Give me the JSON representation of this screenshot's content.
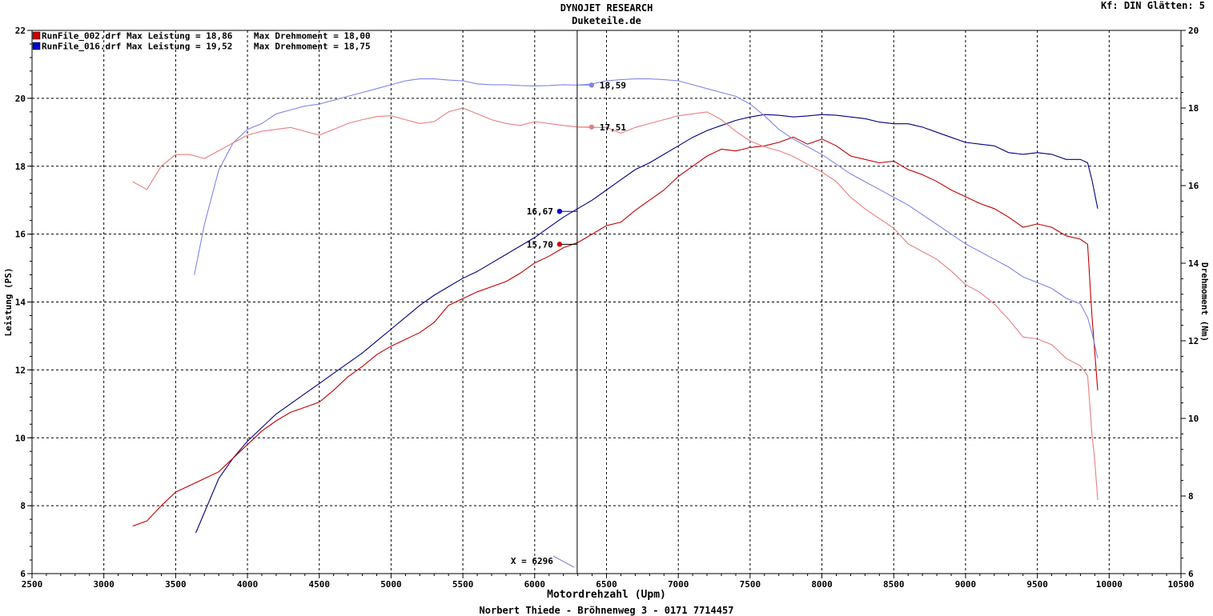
{
  "header": {
    "title_line1": "DYNOJET RESEARCH",
    "title_line2": "Duketeile.de",
    "corner_text": "Kf: DIN  Glätten: 5"
  },
  "footer": "Norbert Thiede - Bröhnenweg 3 - 0171 7714457",
  "chart_data": {
    "type": "line",
    "xlabel": "Motordrehzahl (Upm)",
    "ylabel_left": "Leistung (PS)",
    "ylabel_right": "Drehmoment (Nm)",
    "xlim": [
      2500,
      10500
    ],
    "ylim_left": [
      6,
      22
    ],
    "ylim_right": [
      6,
      20
    ],
    "x_ticks": [
      2500,
      3000,
      3500,
      4000,
      4500,
      5000,
      5500,
      6000,
      6500,
      7000,
      7500,
      8000,
      8500,
      9000,
      9500,
      10000,
      10500
    ],
    "y_left_ticks": [
      6,
      8,
      10,
      12,
      14,
      16,
      18,
      20,
      22
    ],
    "y_right_ticks": [
      6,
      8,
      10,
      12,
      14,
      16,
      18,
      20
    ],
    "grid": true,
    "legend": [
      {
        "text": "RunFile_002.drf Max Leistung = 18,86    Max Drehmoment = 18,00",
        "color": "#cc0000"
      },
      {
        "text": "RunFile_016.drf Max Leistung = 19,52    Max Drehmoment = 18,75",
        "color": "#0000cc"
      }
    ],
    "legend_placement": "top-left",
    "cursor": {
      "x": 6296,
      "label": "X = 6296"
    },
    "markers": [
      {
        "label": "16,67",
        "value": 16.67,
        "axis": "left",
        "color": "#0000cc"
      },
      {
        "label": "15,70",
        "value": 15.7,
        "axis": "left",
        "color": "#cc0000"
      },
      {
        "label": "18,59",
        "value": 18.59,
        "axis": "right",
        "color": "#7f86e6"
      },
      {
        "label": "17,51",
        "value": 17.51,
        "axis": "right",
        "color": "#e77f7f"
      }
    ],
    "series": [
      {
        "name": "RunFile_016.drf Leistung",
        "axis": "left",
        "color": "#00007f",
        "points": [
          [
            3640,
            7.2
          ],
          [
            3700,
            7.8
          ],
          [
            3800,
            8.8
          ],
          [
            3900,
            9.4
          ],
          [
            4000,
            9.9
          ],
          [
            4100,
            10.3
          ],
          [
            4200,
            10.7
          ],
          [
            4300,
            11.0
          ],
          [
            4400,
            11.3
          ],
          [
            4500,
            11.6
          ],
          [
            4600,
            11.9
          ],
          [
            4700,
            12.2
          ],
          [
            4800,
            12.5
          ],
          [
            4900,
            12.85
          ],
          [
            5000,
            13.2
          ],
          [
            5100,
            13.55
          ],
          [
            5200,
            13.9
          ],
          [
            5300,
            14.2
          ],
          [
            5400,
            14.45
          ],
          [
            5500,
            14.7
          ],
          [
            5600,
            14.9
          ],
          [
            5700,
            15.15
          ],
          [
            5800,
            15.4
          ],
          [
            5900,
            15.65
          ],
          [
            6000,
            15.9
          ],
          [
            6100,
            16.2
          ],
          [
            6200,
            16.5
          ],
          [
            6300,
            16.75
          ],
          [
            6400,
            17.0
          ],
          [
            6500,
            17.3
          ],
          [
            6600,
            17.6
          ],
          [
            6700,
            17.9
          ],
          [
            6800,
            18.1
          ],
          [
            6900,
            18.35
          ],
          [
            7000,
            18.6
          ],
          [
            7100,
            18.85
          ],
          [
            7200,
            19.05
          ],
          [
            7300,
            19.2
          ],
          [
            7400,
            19.35
          ],
          [
            7500,
            19.45
          ],
          [
            7600,
            19.52
          ],
          [
            7700,
            19.5
          ],
          [
            7800,
            19.45
          ],
          [
            7900,
            19.48
          ],
          [
            8000,
            19.52
          ],
          [
            8100,
            19.5
          ],
          [
            8200,
            19.45
          ],
          [
            8300,
            19.4
          ],
          [
            8400,
            19.3
          ],
          [
            8500,
            19.25
          ],
          [
            8600,
            19.25
          ],
          [
            8700,
            19.15
          ],
          [
            8800,
            19.0
          ],
          [
            8900,
            18.85
          ],
          [
            9000,
            18.7
          ],
          [
            9100,
            18.65
          ],
          [
            9200,
            18.6
          ],
          [
            9300,
            18.4
          ],
          [
            9400,
            18.35
          ],
          [
            9500,
            18.4
          ],
          [
            9600,
            18.35
          ],
          [
            9700,
            18.2
          ],
          [
            9800,
            18.2
          ],
          [
            9850,
            18.1
          ],
          [
            9880,
            17.6
          ],
          [
            9920,
            16.75
          ]
        ]
      },
      {
        "name": "RunFile_002.drf Leistung",
        "axis": "left",
        "color": "#c00000",
        "points": [
          [
            3200,
            7.4
          ],
          [
            3300,
            7.55
          ],
          [
            3400,
            8.0
          ],
          [
            3500,
            8.4
          ],
          [
            3600,
            8.6
          ],
          [
            3700,
            8.8
          ],
          [
            3800,
            9.0
          ],
          [
            3900,
            9.4
          ],
          [
            4000,
            9.8
          ],
          [
            4100,
            10.2
          ],
          [
            4200,
            10.5
          ],
          [
            4300,
            10.75
          ],
          [
            4400,
            10.9
          ],
          [
            4500,
            11.05
          ],
          [
            4600,
            11.4
          ],
          [
            4700,
            11.8
          ],
          [
            4800,
            12.1
          ],
          [
            4900,
            12.45
          ],
          [
            5000,
            12.7
          ],
          [
            5100,
            12.9
          ],
          [
            5200,
            13.1
          ],
          [
            5300,
            13.4
          ],
          [
            5400,
            13.9
          ],
          [
            5500,
            14.1
          ],
          [
            5600,
            14.3
          ],
          [
            5700,
            14.45
          ],
          [
            5800,
            14.6
          ],
          [
            5900,
            14.85
          ],
          [
            6000,
            15.15
          ],
          [
            6100,
            15.35
          ],
          [
            6200,
            15.6
          ],
          [
            6300,
            15.75
          ],
          [
            6400,
            16.0
          ],
          [
            6500,
            16.25
          ],
          [
            6600,
            16.35
          ],
          [
            6700,
            16.7
          ],
          [
            6800,
            17.0
          ],
          [
            6900,
            17.3
          ],
          [
            7000,
            17.7
          ],
          [
            7100,
            18.0
          ],
          [
            7200,
            18.3
          ],
          [
            7300,
            18.5
          ],
          [
            7400,
            18.45
          ],
          [
            7500,
            18.55
          ],
          [
            7600,
            18.6
          ],
          [
            7700,
            18.7
          ],
          [
            7800,
            18.86
          ],
          [
            7900,
            18.65
          ],
          [
            8000,
            18.8
          ],
          [
            8100,
            18.6
          ],
          [
            8200,
            18.3
          ],
          [
            8300,
            18.2
          ],
          [
            8400,
            18.1
          ],
          [
            8500,
            18.15
          ],
          [
            8600,
            17.9
          ],
          [
            8700,
            17.75
          ],
          [
            8800,
            17.55
          ],
          [
            8900,
            17.3
          ],
          [
            9000,
            17.1
          ],
          [
            9100,
            16.9
          ],
          [
            9200,
            16.75
          ],
          [
            9300,
            16.5
          ],
          [
            9400,
            16.2
          ],
          [
            9500,
            16.3
          ],
          [
            9600,
            16.2
          ],
          [
            9700,
            15.95
          ],
          [
            9800,
            15.85
          ],
          [
            9850,
            15.7
          ],
          [
            9880,
            13.6
          ],
          [
            9920,
            11.4
          ]
        ]
      },
      {
        "name": "RunFile_016.drf Drehmoment",
        "axis": "right",
        "color": "#7f86e6",
        "points": [
          [
            3630,
            13.7
          ],
          [
            3700,
            15.0
          ],
          [
            3800,
            16.4
          ],
          [
            3900,
            17.1
          ],
          [
            4000,
            17.45
          ],
          [
            4100,
            17.6
          ],
          [
            4200,
            17.85
          ],
          [
            4300,
            17.95
          ],
          [
            4400,
            18.05
          ],
          [
            4500,
            18.1
          ],
          [
            4600,
            18.2
          ],
          [
            4700,
            18.3
          ],
          [
            4800,
            18.4
          ],
          [
            4900,
            18.5
          ],
          [
            5000,
            18.6
          ],
          [
            5100,
            18.7
          ],
          [
            5200,
            18.75
          ],
          [
            5300,
            18.75
          ],
          [
            5400,
            18.72
          ],
          [
            5500,
            18.7
          ],
          [
            5600,
            18.62
          ],
          [
            5700,
            18.6
          ],
          [
            5800,
            18.6
          ],
          [
            5900,
            18.58
          ],
          [
            6000,
            18.57
          ],
          [
            6100,
            18.58
          ],
          [
            6200,
            18.6
          ],
          [
            6300,
            18.59
          ],
          [
            6400,
            18.62
          ],
          [
            6500,
            18.7
          ],
          [
            6600,
            18.73
          ],
          [
            6700,
            18.75
          ],
          [
            6800,
            18.75
          ],
          [
            6900,
            18.73
          ],
          [
            7000,
            18.7
          ],
          [
            7100,
            18.6
          ],
          [
            7200,
            18.5
          ],
          [
            7300,
            18.4
          ],
          [
            7400,
            18.3
          ],
          [
            7500,
            18.1
          ],
          [
            7600,
            17.8
          ],
          [
            7700,
            17.45
          ],
          [
            7800,
            17.2
          ],
          [
            7900,
            17.0
          ],
          [
            8000,
            16.8
          ],
          [
            8100,
            16.55
          ],
          [
            8200,
            16.3
          ],
          [
            8300,
            16.1
          ],
          [
            8400,
            15.9
          ],
          [
            8500,
            15.7
          ],
          [
            8600,
            15.5
          ],
          [
            8700,
            15.25
          ],
          [
            8800,
            15.0
          ],
          [
            8900,
            14.75
          ],
          [
            9000,
            14.5
          ],
          [
            9100,
            14.3
          ],
          [
            9200,
            14.1
          ],
          [
            9300,
            13.9
          ],
          [
            9400,
            13.65
          ],
          [
            9500,
            13.5
          ],
          [
            9600,
            13.35
          ],
          [
            9700,
            13.1
          ],
          [
            9800,
            12.95
          ],
          [
            9850,
            12.6
          ],
          [
            9880,
            12.2
          ],
          [
            9920,
            11.55
          ]
        ]
      },
      {
        "name": "RunFile_002.drf Drehmoment",
        "axis": "right",
        "color": "#e77f7f",
        "points": [
          [
            3200,
            16.1
          ],
          [
            3300,
            15.9
          ],
          [
            3400,
            16.5
          ],
          [
            3500,
            16.8
          ],
          [
            3600,
            16.8
          ],
          [
            3700,
            16.7
          ],
          [
            3800,
            16.9
          ],
          [
            3900,
            17.1
          ],
          [
            4000,
            17.3
          ],
          [
            4100,
            17.4
          ],
          [
            4200,
            17.45
          ],
          [
            4300,
            17.5
          ],
          [
            4400,
            17.4
          ],
          [
            4500,
            17.3
          ],
          [
            4600,
            17.45
          ],
          [
            4700,
            17.6
          ],
          [
            4800,
            17.7
          ],
          [
            4900,
            17.78
          ],
          [
            5000,
            17.8
          ],
          [
            5100,
            17.7
          ],
          [
            5200,
            17.6
          ],
          [
            5300,
            17.65
          ],
          [
            5400,
            17.9
          ],
          [
            5500,
            18.0
          ],
          [
            5600,
            17.85
          ],
          [
            5700,
            17.7
          ],
          [
            5800,
            17.6
          ],
          [
            5900,
            17.55
          ],
          [
            6000,
            17.65
          ],
          [
            6100,
            17.6
          ],
          [
            6200,
            17.55
          ],
          [
            6300,
            17.51
          ],
          [
            6400,
            17.5
          ],
          [
            6500,
            17.5
          ],
          [
            6600,
            17.35
          ],
          [
            6700,
            17.5
          ],
          [
            6800,
            17.6
          ],
          [
            6900,
            17.7
          ],
          [
            7000,
            17.8
          ],
          [
            7100,
            17.85
          ],
          [
            7200,
            17.9
          ],
          [
            7300,
            17.7
          ],
          [
            7400,
            17.4
          ],
          [
            7500,
            17.15
          ],
          [
            7600,
            17.0
          ],
          [
            7700,
            16.9
          ],
          [
            7800,
            16.75
          ],
          [
            7900,
            16.55
          ],
          [
            8000,
            16.35
          ],
          [
            8100,
            16.1
          ],
          [
            8200,
            15.7
          ],
          [
            8300,
            15.4
          ],
          [
            8400,
            15.15
          ],
          [
            8500,
            14.9
          ],
          [
            8600,
            14.5
          ],
          [
            8700,
            14.3
          ],
          [
            8800,
            14.1
          ],
          [
            8900,
            13.8
          ],
          [
            9000,
            13.45
          ],
          [
            9100,
            13.25
          ],
          [
            9200,
            12.95
          ],
          [
            9300,
            12.55
          ],
          [
            9400,
            12.1
          ],
          [
            9500,
            12.05
          ],
          [
            9600,
            11.9
          ],
          [
            9700,
            11.55
          ],
          [
            9800,
            11.35
          ],
          [
            9850,
            11.1
          ],
          [
            9880,
            9.6
          ],
          [
            9900,
            8.9
          ],
          [
            9920,
            7.9
          ]
        ]
      }
    ]
  }
}
